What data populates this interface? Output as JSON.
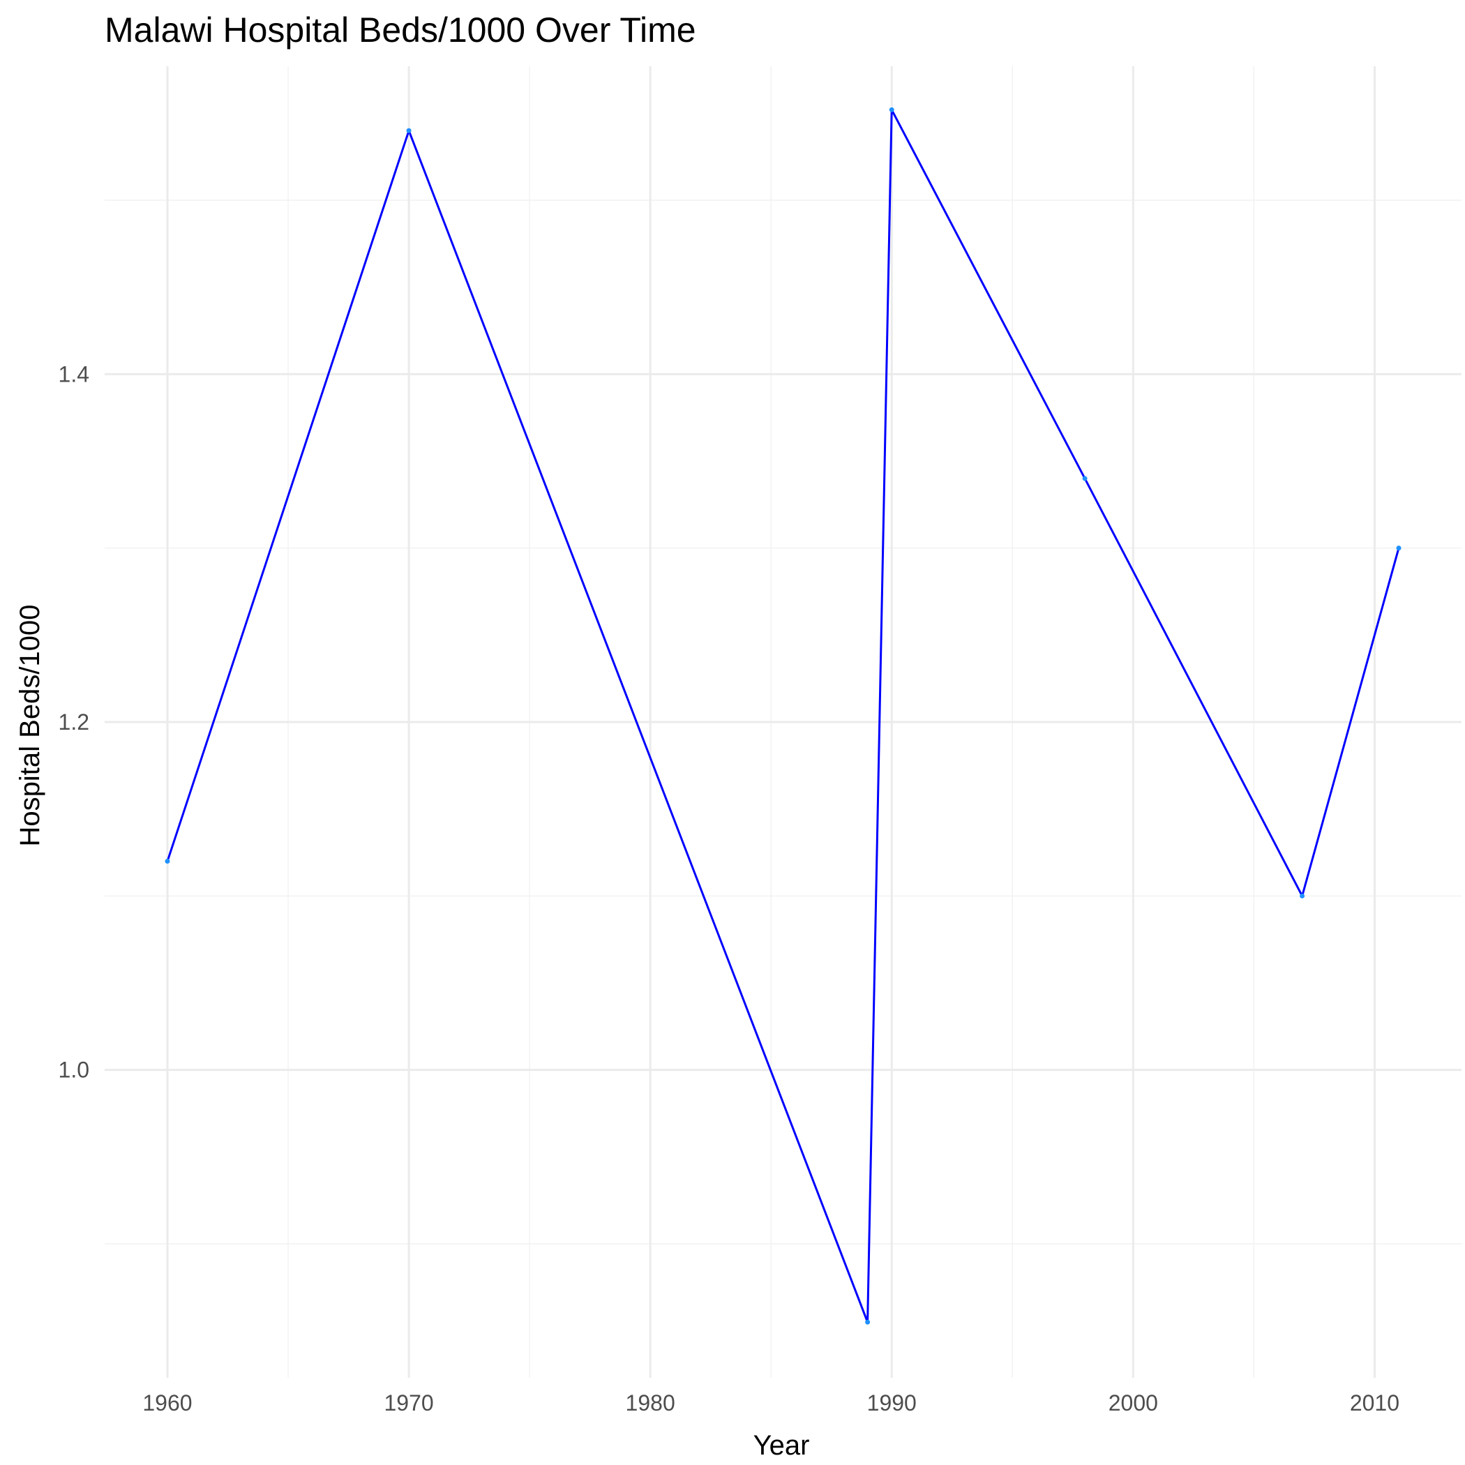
{
  "chart_data": {
    "type": "line",
    "title": "Malawi Hospital Beds/1000 Over Time",
    "xlabel": "Year",
    "ylabel": "Hospital Beds/1000",
    "xlim": [
      1957.4,
      2013.6
    ],
    "ylim": [
      0.823,
      1.577
    ],
    "x_ticks": [
      1960,
      1970,
      1980,
      1990,
      2000,
      2010
    ],
    "x_tick_labels": [
      "1960",
      "1970",
      "1980",
      "1990",
      "2000",
      "2010"
    ],
    "x_minor_ticks": [
      1965,
      1975,
      1985,
      1995,
      2005
    ],
    "y_ticks": [
      1.0,
      1.2,
      1.4
    ],
    "y_tick_labels": [
      "1.0",
      "1.2",
      "1.4"
    ],
    "y_minor_ticks": [
      0.9,
      1.1,
      1.3,
      1.5
    ],
    "grid": true,
    "legend": "none",
    "series": [
      {
        "x": [
          1960,
          1970,
          1989,
          1990,
          1998,
          2007,
          2011
        ],
        "y": [
          1.12,
          1.54,
          0.855,
          1.552,
          1.34,
          1.1,
          1.3
        ]
      }
    ],
    "colors": {
      "line": "#0000ff",
      "point": "#1e90ff",
      "grid_major": "#ebebeb",
      "grid_minor": "#f2f2f2",
      "tick_text": "#4d4d4d",
      "text": "#000000"
    }
  }
}
